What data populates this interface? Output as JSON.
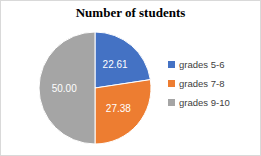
{
  "chart_data": {
    "type": "pie",
    "title": "Number of students",
    "categories": [
      "grades 5-6",
      "grades 7-8",
      "grades 9-10"
    ],
    "values": [
      22.61,
      27.38,
      50.0
    ],
    "value_labels": [
      "22.61",
      "27.38",
      "50.00"
    ],
    "colors": [
      "#4472c4",
      "#ed7d31",
      "#a5a5a5"
    ],
    "data_labels": true,
    "legend": "right"
  }
}
